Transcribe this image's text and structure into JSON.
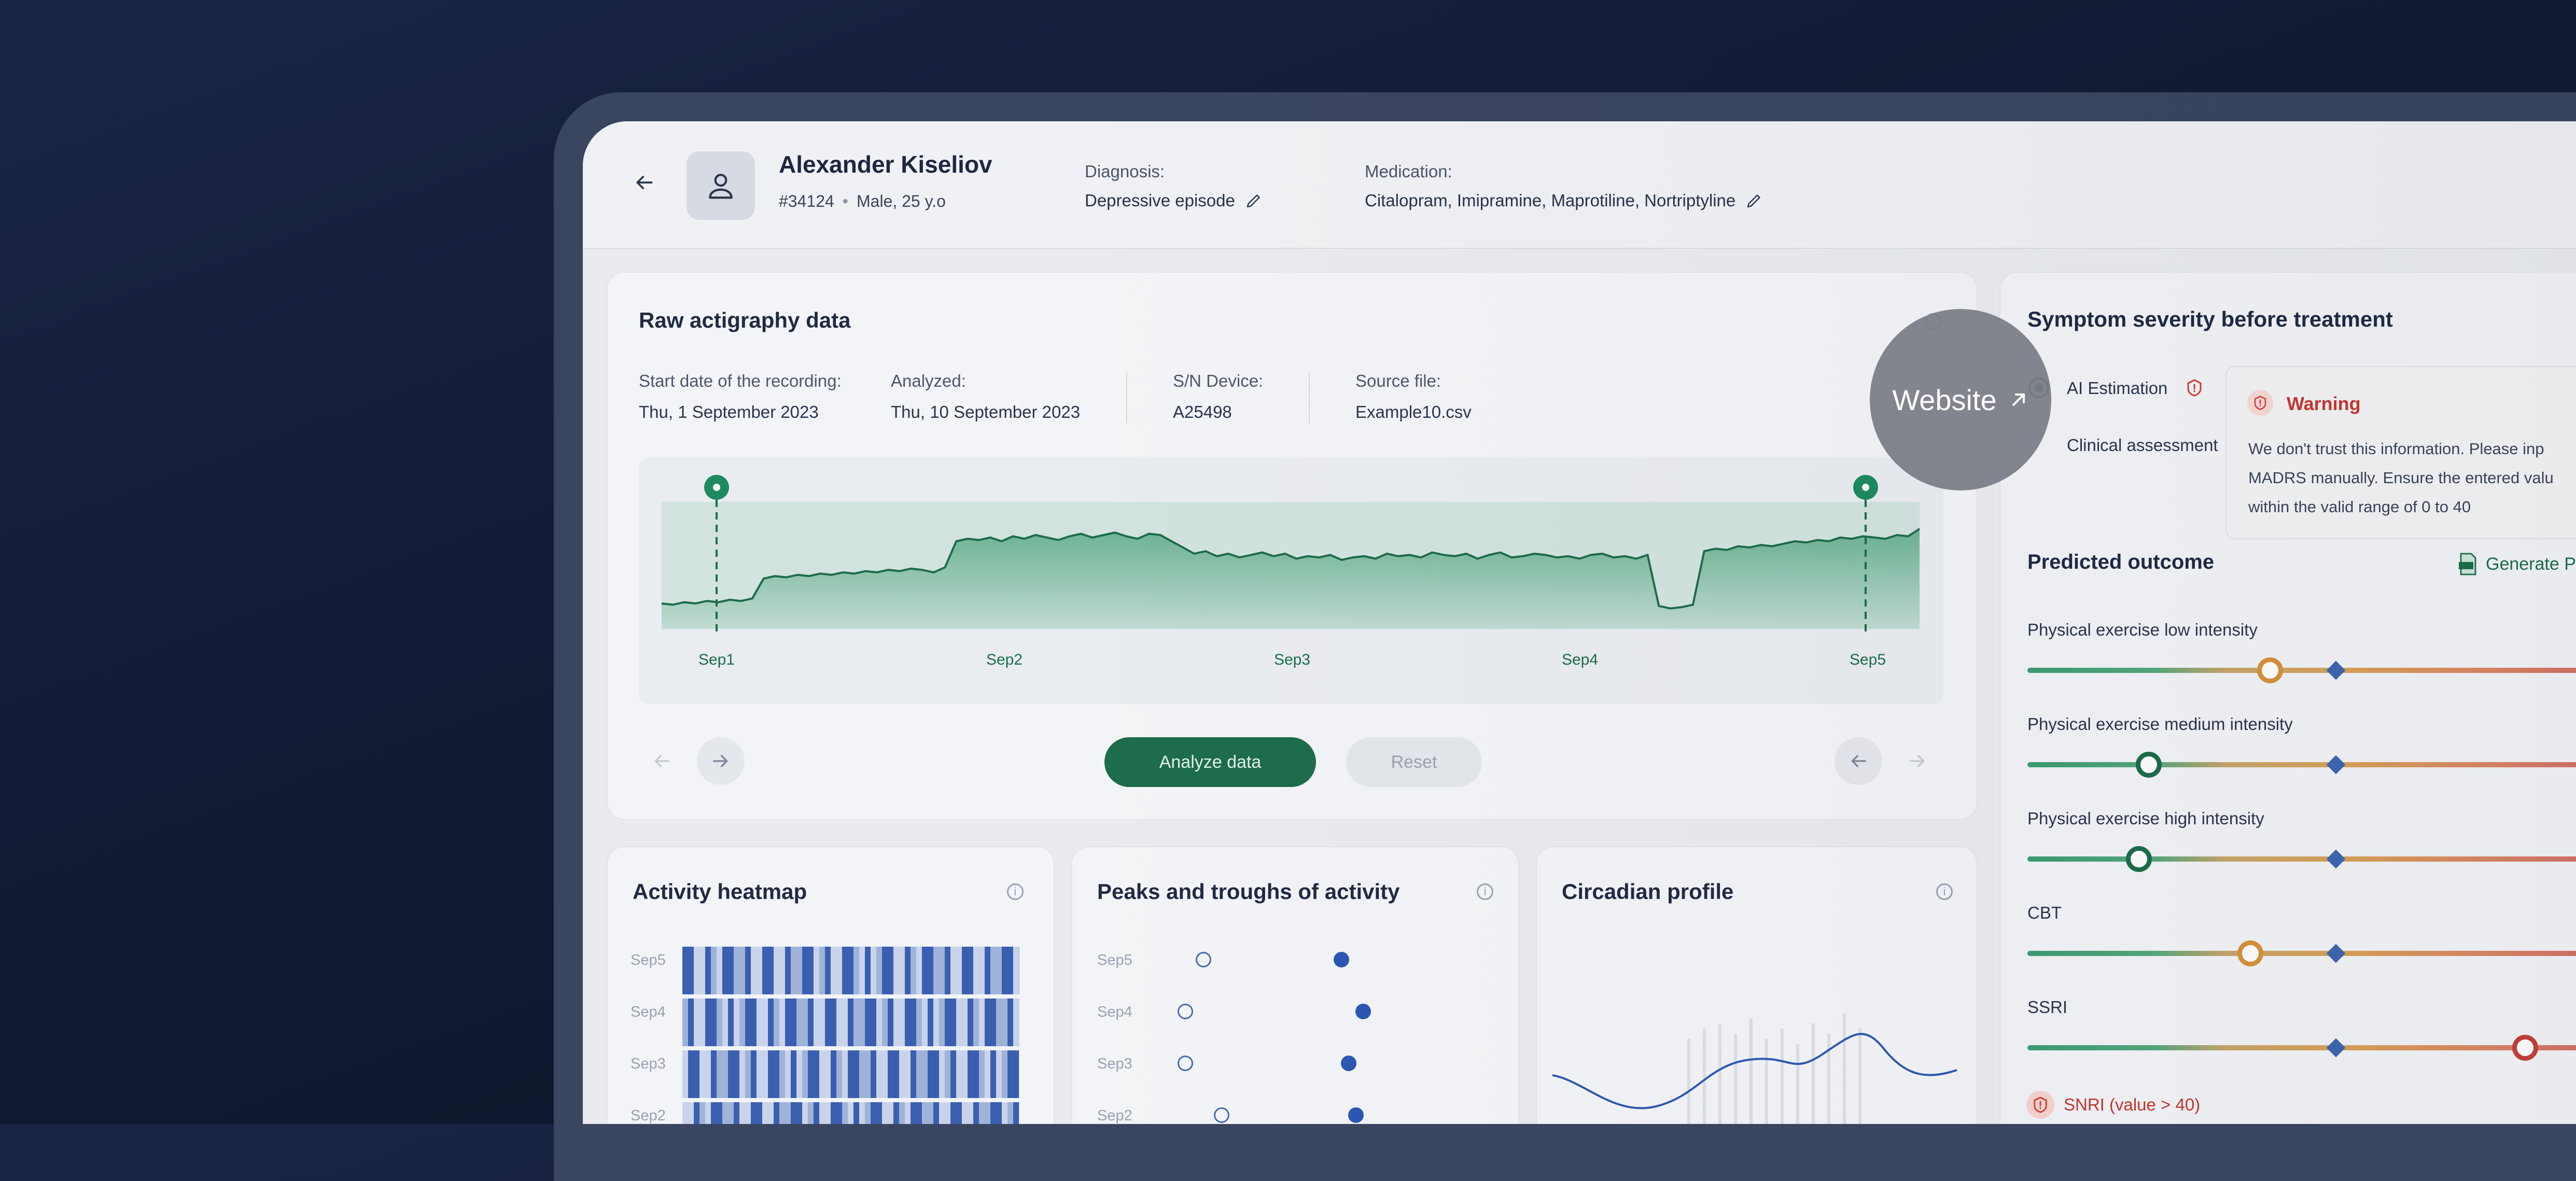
{
  "header": {
    "patient_name": "Alexander Kiseliov",
    "patient_id": "#34124",
    "patient_info": "Male, 25 y.o",
    "diagnosis_label": "Diagnosis:",
    "diagnosis_value": "Depressive episode",
    "medication_label": "Medication:",
    "medication_value": "Citalopram, Imipramine, Maprotiline, Nortriptyline"
  },
  "raw": {
    "title": "Raw actigraphy data",
    "start_label": "Start date of the recording:",
    "start_value": "Thu, 1 September 2023",
    "analyzed_label": "Analyzed:",
    "analyzed_value": "Thu, 10 September 2023",
    "device_label": "S/N Device:",
    "device_value": "A25498",
    "source_label": "Source file:",
    "source_value": "Example10.csv",
    "analyze_button": "Analyze data",
    "reset_button": "Reset"
  },
  "chart_data": {
    "type": "area",
    "x_ticks": [
      "Sep1",
      "Sep2",
      "Sep3",
      "Sep4",
      "Sep5"
    ],
    "selection": [
      "Sep1",
      "Sep5"
    ],
    "values": [
      20,
      19,
      21,
      20,
      22,
      21,
      23,
      22,
      24,
      40,
      42,
      41,
      43,
      42,
      44,
      43,
      45,
      44,
      46,
      45,
      47,
      46,
      48,
      47,
      45,
      49,
      70,
      72,
      71,
      73,
      70,
      74,
      72,
      75,
      73,
      71,
      74,
      76,
      73,
      75,
      77,
      74,
      72,
      76,
      75,
      70,
      65,
      60,
      62,
      58,
      60,
      57,
      59,
      61,
      58,
      60,
      56,
      58,
      57,
      59,
      55,
      57,
      58,
      56,
      60,
      58,
      59,
      57,
      61,
      59,
      58,
      60,
      56,
      59,
      61,
      57,
      58,
      60,
      59,
      57,
      58,
      56,
      59,
      60,
      57,
      58,
      56,
      59,
      18,
      16,
      17,
      19,
      62,
      64,
      63,
      66,
      65,
      67,
      66,
      68,
      70,
      69,
      71,
      70,
      73,
      72,
      74,
      73,
      72,
      75,
      74,
      80
    ],
    "ylim": [
      0,
      100
    ]
  },
  "website": {
    "label": "Website"
  },
  "severity": {
    "title": "Symptom severity before treatment",
    "ai_label": "AI Estimation",
    "clinical_label": "Clinical assessment",
    "warning_title": "Warning",
    "warning_text": [
      "We don't trust this information. Please inp",
      "MADRS manually. Ensure the entered valu",
      "within the valid range of 0 to 40"
    ]
  },
  "predicted": {
    "title": "Predicted outcome",
    "generate_label": "Generate P",
    "items": [
      {
        "label": "Physical exercise low intensity",
        "knob": 0.122,
        "knob_color": "#d6923a",
        "marker": 0.155
      },
      {
        "label": "Physical exercise medium intensity",
        "knob": 0.061,
        "knob_color": "#1d6c4b",
        "marker": 0.155
      },
      {
        "label": "Physical exercise high intensity",
        "knob": 0.056,
        "knob_color": "#1d6c4b",
        "marker": 0.155
      },
      {
        "label": "CBT",
        "knob": 0.112,
        "knob_color": "#d6923a",
        "marker": 0.155
      },
      {
        "label": "SSRI",
        "knob": 0.25,
        "knob_color": "#c4403a",
        "marker": 0.155
      }
    ],
    "snri_label": "SNRI (value > 40)"
  },
  "heatmap": {
    "title": "Activity heatmap",
    "rows": [
      "Sep5",
      "Sep4",
      "Sep3",
      "Sep2"
    ]
  },
  "peaks": {
    "title": "Peaks and troughs of activity",
    "rows": [
      "Sep5",
      "Sep4",
      "Sep3",
      "Sep2"
    ],
    "troughs": [
      0.14,
      0.09,
      0.09,
      0.19
    ],
    "peaks": [
      0.52,
      0.58,
      0.54,
      0.56
    ]
  },
  "circadian": {
    "title": "Circadian profile"
  }
}
